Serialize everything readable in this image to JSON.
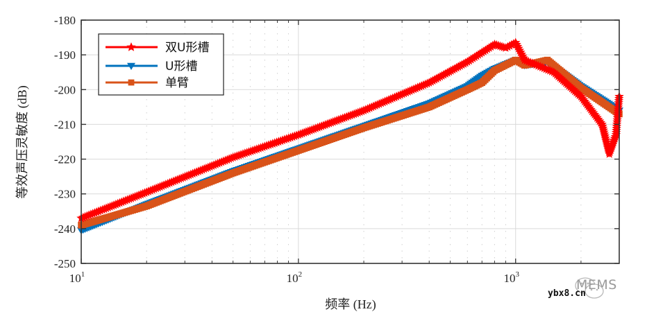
{
  "chart_data": {
    "type": "line",
    "title": "",
    "xlabel": "频率 (Hz)",
    "ylabel": "等效声压灵敏度 (dB)",
    "xscale": "log",
    "xlim": [
      10,
      3000
    ],
    "ylim": [
      -250,
      -180
    ],
    "grid": true,
    "xticks": [
      {
        "value": 10,
        "label": "10",
        "exp": "1"
      },
      {
        "value": 100,
        "label": "10",
        "exp": "2"
      },
      {
        "value": 1000,
        "label": "10",
        "exp": "3"
      }
    ],
    "yticks": [
      -180,
      -190,
      -200,
      -210,
      -220,
      -230,
      -240,
      -250
    ],
    "ytick_labels": [
      "-180",
      "-190",
      "-200",
      "-210",
      "-220",
      "-230",
      "-240",
      "-250"
    ],
    "legend_position": "upper left",
    "series": [
      {
        "name": "双U形槽",
        "color": "#ff0000",
        "marker": "star",
        "x": [
          10,
          20,
          50,
          100,
          200,
          400,
          600,
          800,
          900,
          1000,
          1100,
          1500,
          2000,
          2500,
          2700,
          2900,
          3000
        ],
        "y": [
          -237,
          -229.5,
          -219.5,
          -213,
          -206,
          -198,
          -192,
          -187,
          -188,
          -186.5,
          -191.5,
          -195,
          -202,
          -210,
          -218.5,
          -213,
          -202
        ]
      },
      {
        "name": "U形槽",
        "color": "#0072bd",
        "marker": "triangle-down",
        "x": [
          10,
          20,
          50,
          100,
          200,
          400,
          600,
          700,
          800,
          1000,
          1100,
          1400,
          2000,
          3000
        ],
        "y": [
          -240.5,
          -233,
          -223.5,
          -217,
          -210.5,
          -204,
          -199,
          -196,
          -194,
          -191.5,
          -193,
          -192,
          -199,
          -206
        ]
      },
      {
        "name": "单臂",
        "color": "#d95319",
        "marker": "square",
        "x": [
          10,
          20,
          50,
          100,
          200,
          400,
          600,
          700,
          800,
          1000,
          1100,
          1400,
          2000,
          3000
        ],
        "y": [
          -239,
          -233.5,
          -224,
          -217.5,
          -211,
          -205,
          -200,
          -198,
          -194.5,
          -191.5,
          -193,
          -191.5,
          -199.5,
          -207
        ]
      }
    ]
  },
  "watermark": {
    "brand": "MEMS",
    "site": "ybx8.cn"
  }
}
